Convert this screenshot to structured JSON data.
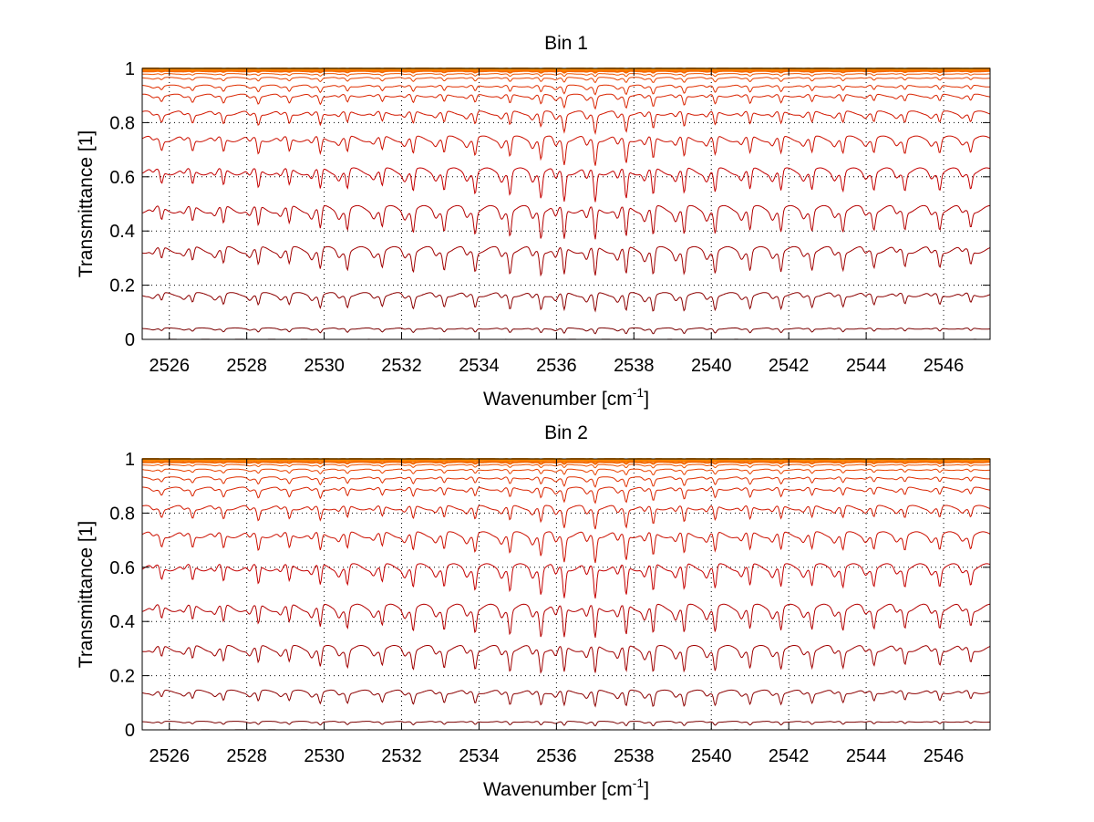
{
  "chart_data": [
    {
      "type": "line",
      "title": "Bin 1",
      "xlabel": "Wavenumber [cm",
      "xlabel_sup": "-1",
      "xlabel_close": "]",
      "ylabel": "Transmittance [1]",
      "xlim": [
        2525.3,
        2547.2
      ],
      "ylim": [
        0,
        1
      ],
      "xticks": [
        2526,
        2528,
        2530,
        2532,
        2534,
        2536,
        2538,
        2540,
        2542,
        2544,
        2546
      ],
      "xtick_labels": [
        "2526",
        "2528",
        "2530",
        "2532",
        "2534",
        "2536",
        "2538",
        "2540",
        "2542",
        "2544",
        "2546"
      ],
      "yticks": [
        0,
        0.2,
        0.4,
        0.6,
        0.8,
        1
      ],
      "ytick_labels": [
        "0",
        "0.2",
        "0.4",
        "0.6",
        "0.8",
        "1"
      ],
      "grid": true,
      "series_baselines": [
        0.0,
        0.04,
        0.165,
        0.33,
        0.48,
        0.62,
        0.74,
        0.835,
        0.9,
        0.935,
        0.965,
        0.98,
        0.99,
        0.995,
        0.998,
        1.0
      ],
      "series_colors": [
        "#600000",
        "#7a0000",
        "#8c0000",
        "#a00000",
        "#b40000",
        "#c40000",
        "#cc1000",
        "#d21800",
        "#d92400",
        "#e03000",
        "#e84200",
        "#ef5500",
        "#f46800",
        "#f87a00",
        "#fb8800",
        "#ff9500"
      ]
    },
    {
      "type": "line",
      "title": "Bin 2",
      "xlabel": "Wavenumber [cm",
      "xlabel_sup": "-1",
      "xlabel_close": "]",
      "ylabel": "Transmittance [1]",
      "xlim": [
        2525.3,
        2547.2
      ],
      "ylim": [
        0,
        1
      ],
      "xticks": [
        2526,
        2528,
        2530,
        2532,
        2534,
        2536,
        2538,
        2540,
        2542,
        2544,
        2546
      ],
      "xtick_labels": [
        "2526",
        "2528",
        "2530",
        "2532",
        "2534",
        "2536",
        "2538",
        "2540",
        "2542",
        "2544",
        "2546"
      ],
      "yticks": [
        0,
        0.2,
        0.4,
        0.6,
        0.8,
        1
      ],
      "ytick_labels": [
        "0",
        "0.2",
        "0.4",
        "0.6",
        "0.8",
        "1"
      ],
      "grid": true,
      "series_baselines": [
        0.0,
        0.03,
        0.14,
        0.3,
        0.45,
        0.6,
        0.72,
        0.82,
        0.89,
        0.93,
        0.96,
        0.978,
        0.988,
        0.994,
        0.998,
        1.0
      ],
      "series_colors": [
        "#600000",
        "#7a0000",
        "#8c0000",
        "#a00000",
        "#b40000",
        "#c40000",
        "#cc1000",
        "#d21800",
        "#d92400",
        "#e03000",
        "#e84200",
        "#ef5500",
        "#f46800",
        "#f87a00",
        "#fb8800",
        "#ff9500"
      ]
    }
  ]
}
